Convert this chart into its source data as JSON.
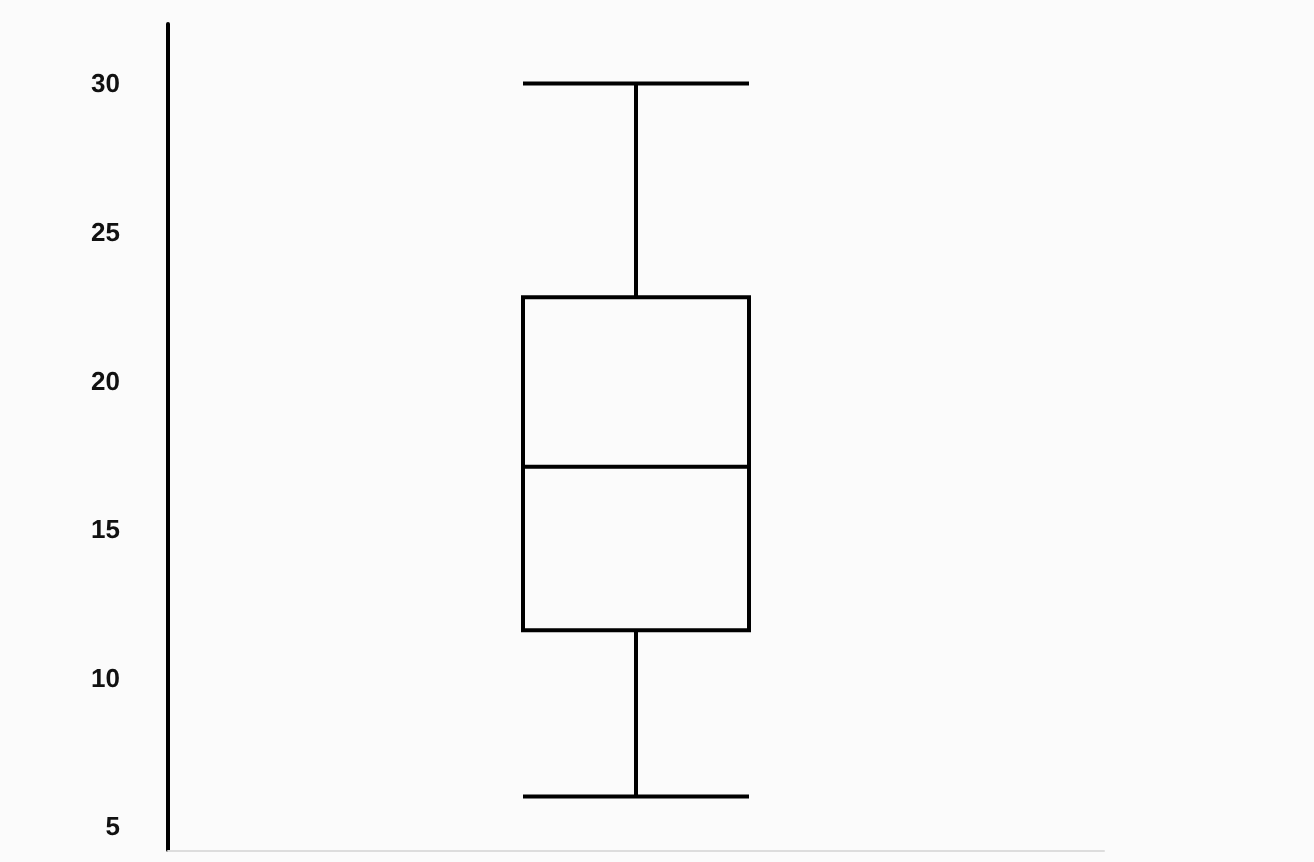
{
  "chart_data": {
    "type": "box",
    "categories": [
      null
    ],
    "boxes": [
      {
        "low": 6,
        "q1": 11.6,
        "median": 17.1,
        "q3": 22.8,
        "high": 30
      }
    ],
    "color": "#000000",
    "ylim": [
      4.2,
      32
    ],
    "yticks": [
      5,
      10,
      15,
      20,
      25,
      30
    ],
    "grid": false
  }
}
